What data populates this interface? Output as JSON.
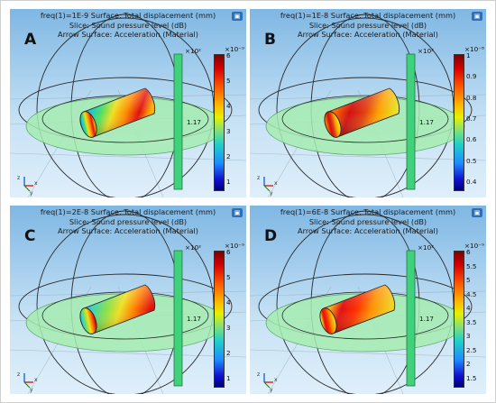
{
  "panels": [
    {
      "label": "A",
      "title_line1": "freq(1)=1E-9  Surface: Total displacement (mm)",
      "title_line2": "Slice: Sound pressure level (dB)",
      "title_line3": "Arrow Surface: Acceleration (Material)",
      "slice_exponent": "×10²",
      "slice_value": "1.17",
      "colorbar_exponent": "×10⁻⁹",
      "colorbar_ticks": [
        "6",
        "5",
        "4",
        "3",
        "2",
        "1"
      ]
    },
    {
      "label": "B",
      "title_line1": "freq(1)=1E-8  Surface: Total displacement (mm)",
      "title_line2": "Slice: Sound pressure level (dB)",
      "title_line3": "Arrow Surface: Acceleration (Material)",
      "slice_exponent": "×10²",
      "slice_value": "1.17",
      "colorbar_exponent": "×10⁻⁸",
      "colorbar_ticks": [
        "1",
        "0.9",
        "0.8",
        "0.7",
        "0.6",
        "0.5",
        "0.4"
      ]
    },
    {
      "label": "C",
      "title_line1": "freq(1)=2E-8  Surface: Total displacement (mm)",
      "title_line2": "Slice: Sound pressure level (dB)",
      "title_line3": "Arrow Surface: Acceleration (Material)",
      "slice_exponent": "×10²",
      "slice_value": "1.17",
      "colorbar_exponent": "×10⁻⁹",
      "colorbar_ticks": [
        "6",
        "5",
        "4",
        "3",
        "2",
        "1"
      ]
    },
    {
      "label": "D",
      "title_line1": "freq(1)=6E-8  Surface: Total displacement (mm)",
      "title_line2": "Slice: Sound pressure level (dB)",
      "title_line3": "Arrow Surface: Acceleration (Material)",
      "slice_exponent": "×10²",
      "slice_value": "1.17",
      "colorbar_exponent": "×10⁻⁹",
      "colorbar_ticks": [
        "6",
        "5.5",
        "5",
        "4.5",
        "4",
        "3.5",
        "3",
        "2.5",
        "2",
        "1.5"
      ]
    }
  ],
  "axis_triad": {
    "x": "x",
    "y": "y",
    "z": "z"
  },
  "colors": {
    "background_top": "#7fb7e3",
    "background_bottom": "#dfeffa",
    "slice_disk": "#a6ecb0",
    "slice_bar": "#3fd27a",
    "colorbar_max": "#8b0000",
    "colorbar_min": "#00008b"
  }
}
